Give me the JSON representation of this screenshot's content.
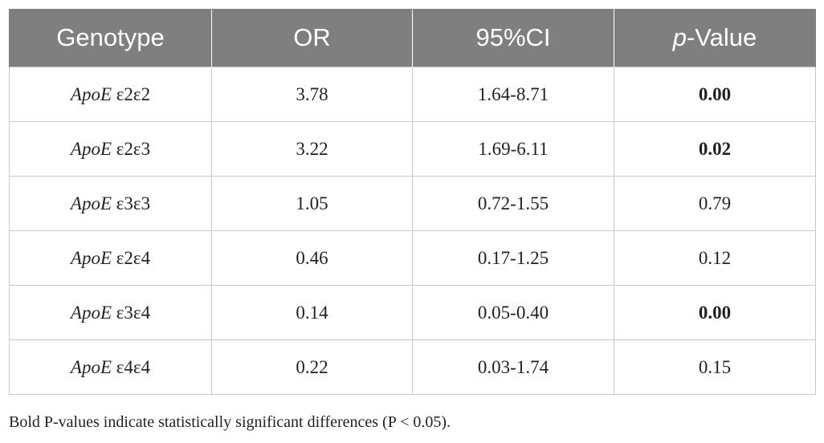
{
  "table": {
    "headers": {
      "genotype": "Genotype",
      "or": "OR",
      "ci": "95%CI",
      "pvalue_prefix": "p",
      "pvalue_suffix": "-Value"
    },
    "rows": [
      {
        "gene": "ApoE",
        "allele": " ε2ε2",
        "or": "3.78",
        "ci": "1.64-8.71",
        "p": "0.00",
        "significant": true
      },
      {
        "gene": "ApoE",
        "allele": " ε2ε3",
        "or": "3.22",
        "ci": "1.69-6.11",
        "p": "0.02",
        "significant": true
      },
      {
        "gene": "ApoE",
        "allele": " ε3ε3",
        "or": "1.05",
        "ci": "0.72-1.55",
        "p": "0.79",
        "significant": false
      },
      {
        "gene": "ApoE",
        "allele": " ε2ε4",
        "or": "0.46",
        "ci": "0.17-1.25",
        "p": "0.12",
        "significant": false
      },
      {
        "gene": "ApoE",
        "allele": " ε3ε4",
        "or": "0.14",
        "ci": "0.05-0.40",
        "p": "0.00",
        "significant": true
      },
      {
        "gene": "ApoE",
        "allele": " ε4ε4",
        "or": "0.22",
        "ci": "0.03-1.74",
        "p": "0.15",
        "significant": false
      }
    ]
  },
  "footnote": "Bold P-values indicate statistically significant differences (P < 0.05).",
  "colors": {
    "header_bg": "#7f7f7f",
    "header_text": "#ffffff",
    "body_text": "#231f20",
    "grid": "#c8c8c8"
  }
}
